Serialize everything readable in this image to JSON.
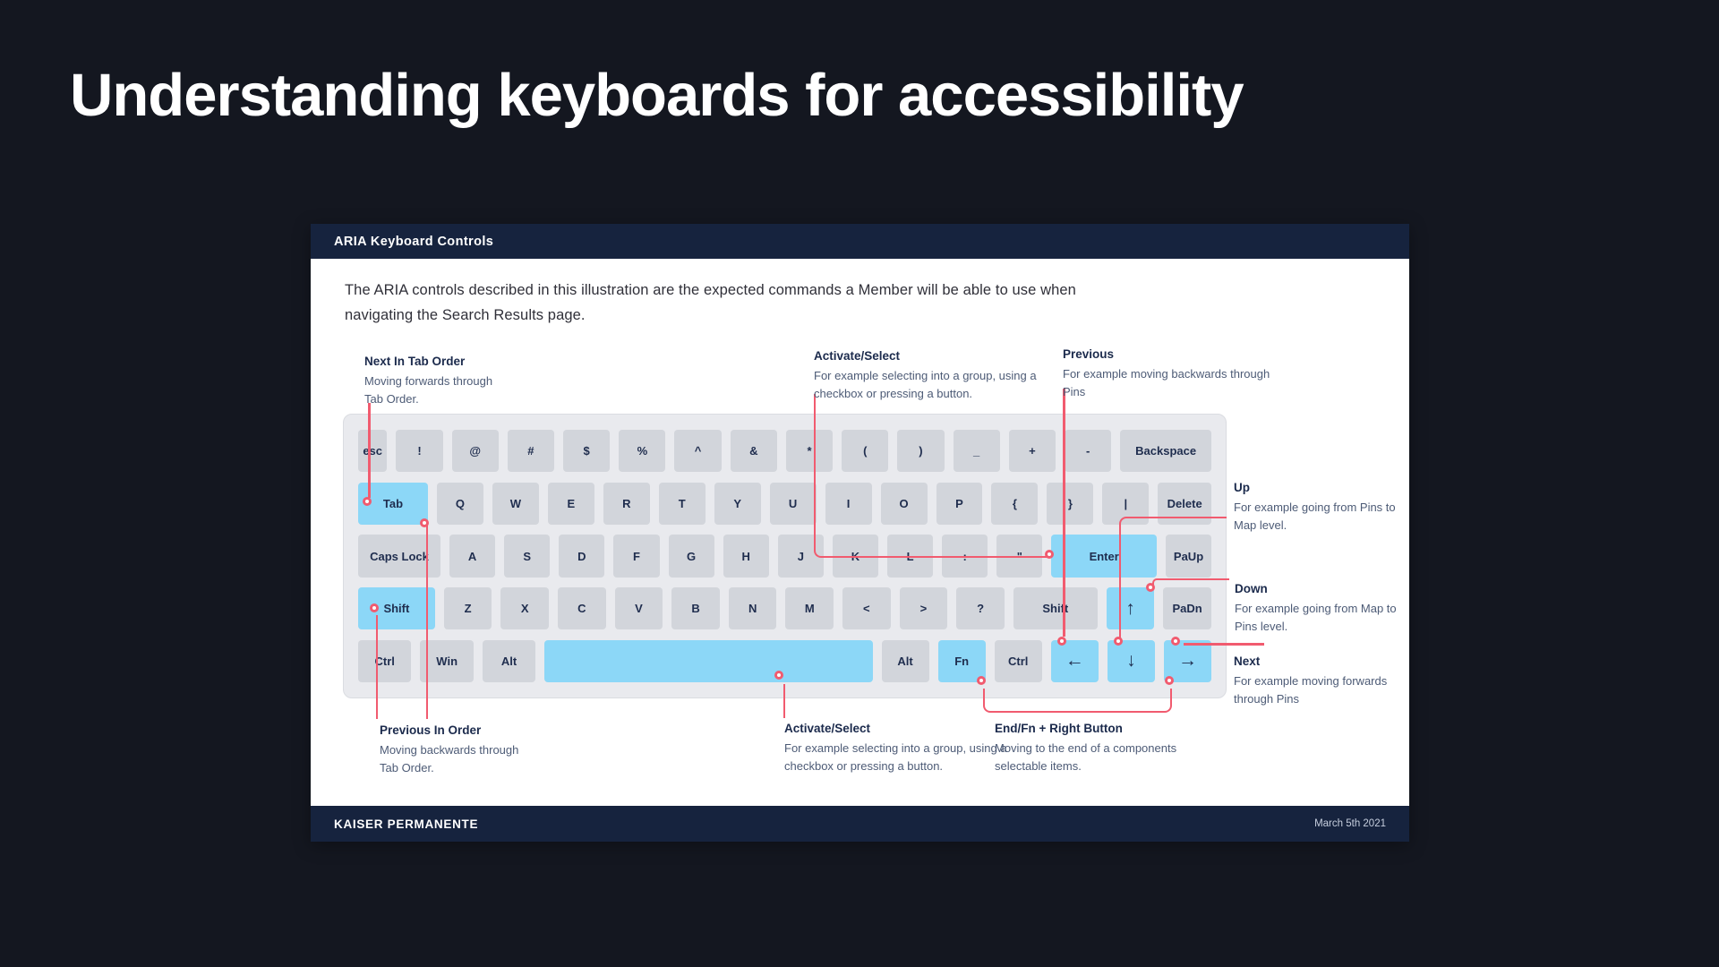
{
  "slide": {
    "title": "Understanding keyboards for accessibility"
  },
  "panel": {
    "header_title": "ARIA Keyboard Controls",
    "intro": "The ARIA controls described in this illustration are the expected commands a Member will be able to use when\nnavigating the Search Results page.",
    "footer": {
      "brand": "KAISER PERMANENTE",
      "date": "March 5th 2021"
    }
  },
  "colors": {
    "page_background": "#141720",
    "panel_navy": "#16233E",
    "highlight_blue": "#8CD7F7",
    "callout_pink": "#F15B6F",
    "key_gray": "#D2D5DB"
  },
  "callouts": [
    {
      "title": "Next In Tab Order",
      "body": "Moving forwards through\nTab Order."
    },
    {
      "title": "Activate/Select",
      "body": "For example selecting into a group, using a\ncheckbox or pressing a button."
    },
    {
      "title": "Previous",
      "body": "For example moving backwards through\nPins"
    },
    {
      "title": "Up",
      "body": "For example going from Pins to\nMap level."
    },
    {
      "title": "Down",
      "body": "For example going from Map to\nPins level."
    },
    {
      "title": "Next",
      "body": "For example moving forwards\nthrough Pins"
    },
    {
      "title": "Previous In Order",
      "body": "Moving backwards through\nTab Order."
    },
    {
      "title": "Activate/Select",
      "body": "For example selecting into a group, using a\ncheckbox or pressing a button."
    },
    {
      "title": "End/Fn + Right Button",
      "body": "Moving to the end of a components\nselectable items."
    }
  ],
  "keyboard": {
    "rows": [
      [
        {
          "l": "esc",
          "w": 0.62,
          "n": "esc"
        },
        {
          "l": "!",
          "n": "exclamation"
        },
        {
          "l": "@",
          "n": "at"
        },
        {
          "l": "#",
          "n": "hash"
        },
        {
          "l": "$",
          "n": "dollar"
        },
        {
          "l": "%",
          "n": "percent"
        },
        {
          "l": "^",
          "n": "caret"
        },
        {
          "l": "&",
          "n": "ampersand"
        },
        {
          "l": "*",
          "n": "asterisk"
        },
        {
          "l": "(",
          "n": "paren-left"
        },
        {
          "l": ")",
          "n": "paren-right"
        },
        {
          "l": "_",
          "n": "underscore"
        },
        {
          "l": "+",
          "n": "plus"
        },
        {
          "l": "-",
          "n": "minus"
        },
        {
          "l": "Backspace",
          "w": 1.95,
          "n": "backspace"
        }
      ],
      [
        {
          "l": "Tab",
          "w": 1.5,
          "hl": true,
          "n": "tab"
        },
        {
          "l": "Q"
        },
        {
          "l": "W"
        },
        {
          "l": "E"
        },
        {
          "l": "R"
        },
        {
          "l": "T"
        },
        {
          "l": "Y"
        },
        {
          "l": "U"
        },
        {
          "l": "I"
        },
        {
          "l": "O"
        },
        {
          "l": "P"
        },
        {
          "l": "{",
          "n": "brace-left"
        },
        {
          "l": "}",
          "n": "brace-right"
        },
        {
          "l": "|",
          "n": "pipe"
        },
        {
          "l": "Delete",
          "w": 1.15,
          "n": "delete"
        }
      ],
      [
        {
          "l": "Caps Lock",
          "w": 1.8,
          "n": "caps-lock"
        },
        {
          "l": "A"
        },
        {
          "l": "S"
        },
        {
          "l": "D"
        },
        {
          "l": "F"
        },
        {
          "l": "G"
        },
        {
          "l": "H"
        },
        {
          "l": "J"
        },
        {
          "l": "K"
        },
        {
          "l": "L"
        },
        {
          "l": ":",
          "n": "colon"
        },
        {
          "l": "\"",
          "n": "quote"
        },
        {
          "l": "Enter",
          "w": 2.3,
          "hl": true,
          "n": "enter"
        },
        {
          "l": "PaUp",
          "n": "page-up"
        }
      ],
      [
        {
          "l": "Shift",
          "w": 1.6,
          "hl": true,
          "n": "shift-left"
        },
        {
          "l": "Z"
        },
        {
          "l": "X"
        },
        {
          "l": "C"
        },
        {
          "l": "V"
        },
        {
          "l": "B"
        },
        {
          "l": "N"
        },
        {
          "l": "M"
        },
        {
          "l": "<",
          "n": "less-than"
        },
        {
          "l": ">",
          "n": "greater-than"
        },
        {
          "l": "?",
          "n": "question"
        },
        {
          "l": "Shift",
          "w": 1.75,
          "n": "shift-right"
        },
        {
          "l": "↑",
          "hl": true,
          "a": true,
          "n": "arrow-up"
        },
        {
          "l": "PaDn",
          "n": "page-down"
        }
      ],
      [
        {
          "l": "Ctrl",
          "w": 1.12,
          "n": "ctrl-left"
        },
        {
          "l": "Win",
          "w": 1.12,
          "n": "win"
        },
        {
          "l": "Alt",
          "w": 1.12,
          "n": "alt-left"
        },
        {
          "l": "",
          "w": 6.9,
          "hl": true,
          "n": "space"
        },
        {
          "l": "Alt",
          "n": "alt-right"
        },
        {
          "l": "Fn",
          "hl": true,
          "n": "fn"
        },
        {
          "l": "Ctrl",
          "n": "ctrl-right"
        },
        {
          "l": "←",
          "hl": true,
          "a": true,
          "n": "arrow-left"
        },
        {
          "l": "↓",
          "hl": true,
          "a": true,
          "n": "arrow-down"
        },
        {
          "l": "→",
          "hl": true,
          "a": true,
          "n": "arrow-right"
        }
      ]
    ]
  }
}
